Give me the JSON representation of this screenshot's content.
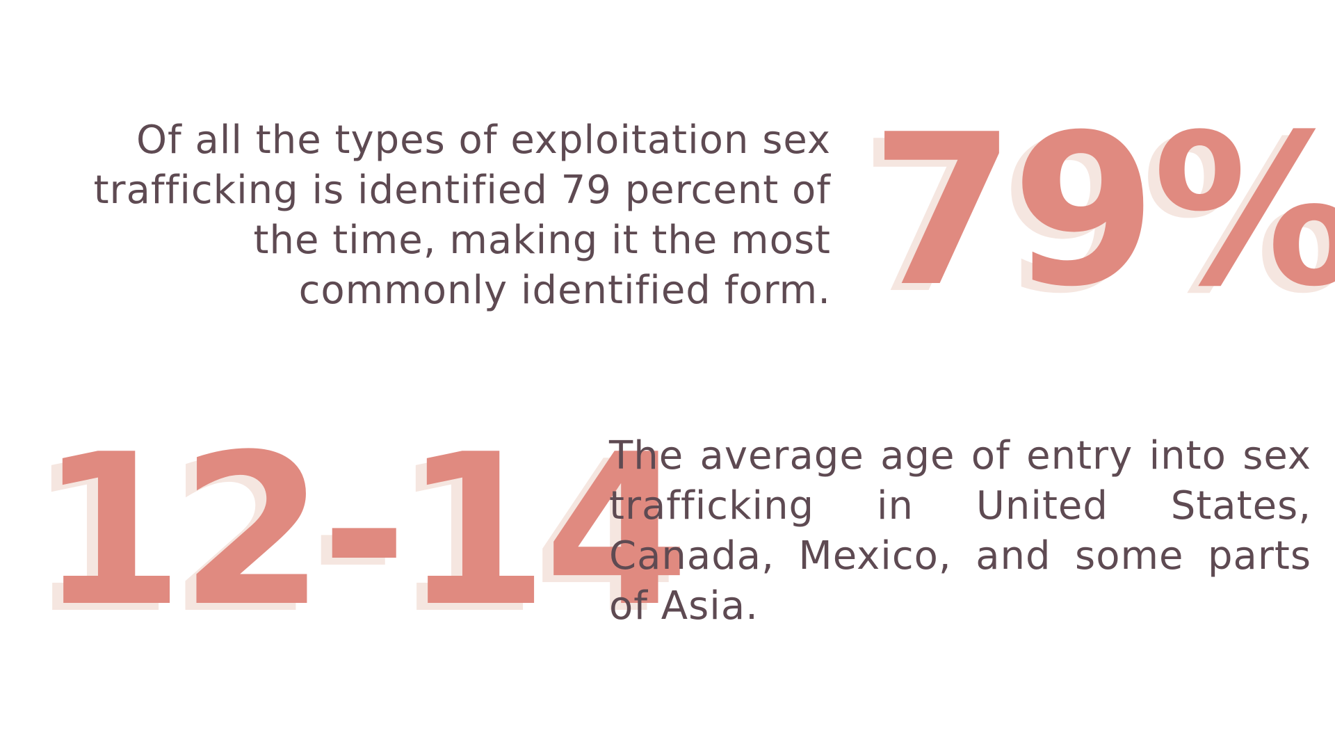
{
  "stats": [
    {
      "value": "79%",
      "description": "Of all the types of exploitation sex trafficking is identified 79 percent of the time, making it the most commonly identified form."
    },
    {
      "value": "12-14",
      "description": "The average  age of entry into sex trafficking in United States, Canada, Mexico, and some parts of Asia."
    }
  ],
  "colors": {
    "number": "#e08a80",
    "number_shadow": "#f5e6e0",
    "text": "#5e4a52",
    "background": "#ffffff"
  }
}
